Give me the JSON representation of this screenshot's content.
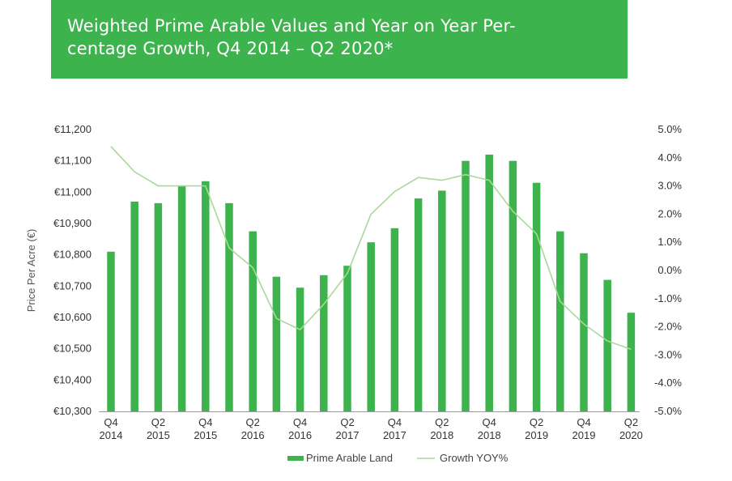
{
  "title": {
    "line1": "Weighted Prime Arable Values and Year on Year Per-",
    "line2": "centage Growth, Q4 2014 – Q2 2020*"
  },
  "colors": {
    "banner": "#3cb34d",
    "bar": "#3cb34d",
    "line": "#a8d99a"
  },
  "chart_data": {
    "type": "bar",
    "title": "Weighted Prime Arable Values and Year on Year Percentage Growth, Q4 2014 – Q2 2020*",
    "ylabel": "Price Per Acre (€)",
    "ylim": [
      10300,
      11200
    ],
    "y2lim": [
      -5.0,
      5.0
    ],
    "left_ticks": [
      "€10,300",
      "€10,400",
      "€10,500",
      "€10,600",
      "€10,700",
      "€10,800",
      "€10,900",
      "€11,000",
      "€11,100",
      "€11,200"
    ],
    "right_ticks": [
      "-5.0%",
      "-4.0%",
      "-3.0%",
      "-2.0%",
      "-1.0%",
      "0.0%",
      "1.0%",
      "2.0%",
      "3.0%",
      "4.0%",
      "5.0%"
    ],
    "x_tick_labels": [
      {
        "q": "Q4",
        "y": "2014"
      },
      {
        "q": "Q2",
        "y": "2015"
      },
      {
        "q": "Q4",
        "y": "2015"
      },
      {
        "q": "Q2",
        "y": "2016"
      },
      {
        "q": "Q4",
        "y": "2016"
      },
      {
        "q": "Q2",
        "y": "2017"
      },
      {
        "q": "Q4",
        "y": "2017"
      },
      {
        "q": "Q2",
        "y": "2018"
      },
      {
        "q": "Q4",
        "y": "2018"
      },
      {
        "q": "Q2",
        "y": "2019"
      },
      {
        "q": "Q4",
        "y": "2019"
      },
      {
        "q": "Q2",
        "y": "2020"
      }
    ],
    "tick_every": 2,
    "legend_position": "bottom",
    "grid": false,
    "series": [
      {
        "name": "Prime Arable Land",
        "type": "bar",
        "values": [
          10810,
          10970,
          10965,
          11020,
          11035,
          10965,
          10875,
          10730,
          10695,
          10735,
          10765,
          10840,
          10885,
          10980,
          11005,
          11100,
          11120,
          11100,
          11030,
          10875,
          10805,
          10720,
          10615
        ]
      },
      {
        "name": "Growth YOY%",
        "type": "line",
        "axis": "right",
        "values": [
          4.4,
          3.5,
          3.0,
          3.0,
          3.0,
          0.8,
          0.1,
          -1.7,
          -2.1,
          -1.2,
          -0.1,
          2.0,
          2.8,
          3.3,
          3.2,
          3.4,
          3.2,
          2.1,
          1.3,
          -1.1,
          -1.9,
          -2.5,
          -2.8
        ]
      }
    ]
  }
}
